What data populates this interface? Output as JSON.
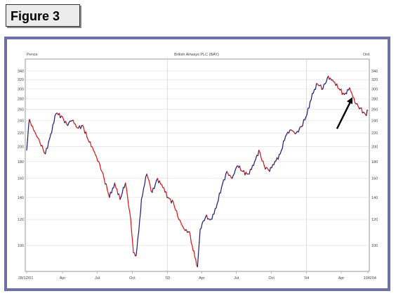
{
  "figure_label": "Figure 3",
  "chart_data": {
    "type": "line",
    "title": "British Airways PLC (BAY)",
    "y_left_label": "Pence",
    "y_right_label": "Ord",
    "y_scale": "log",
    "ylim": [
      85,
      350
    ],
    "y_ticks": [
      100,
      120,
      140,
      160,
      180,
      200,
      220,
      240,
      260,
      280,
      300,
      320,
      340
    ],
    "x_tick_labels": [
      "28/12/01",
      "Apr",
      "Jul",
      "Oct",
      "'03",
      "Apr",
      "Jul",
      "Oct",
      "'04",
      "Apr",
      "10/6/04"
    ],
    "x": [
      "2001-12-28",
      "2002-01-04",
      "2002-01-18",
      "2002-02-01",
      "2002-02-15",
      "2002-03-01",
      "2002-03-15",
      "2002-03-29",
      "2002-04-12",
      "2002-04-26",
      "2002-05-10",
      "2002-05-24",
      "2002-06-07",
      "2002-06-21",
      "2002-07-05",
      "2002-07-19",
      "2002-08-02",
      "2002-08-16",
      "2002-08-30",
      "2002-09-13",
      "2002-09-27",
      "2002-10-04",
      "2002-10-11",
      "2002-10-18",
      "2002-10-25",
      "2002-11-08",
      "2002-11-22",
      "2002-12-06",
      "2002-12-20",
      "2003-01-03",
      "2003-01-17",
      "2003-01-31",
      "2003-02-14",
      "2003-02-28",
      "2003-03-07",
      "2003-03-14",
      "2003-03-21",
      "2003-03-28",
      "2003-04-11",
      "2003-04-25",
      "2003-05-09",
      "2003-05-23",
      "2003-06-06",
      "2003-06-20",
      "2003-07-04",
      "2003-07-18",
      "2003-08-01",
      "2003-08-15",
      "2003-08-29",
      "2003-09-12",
      "2003-09-26",
      "2003-10-10",
      "2003-10-24",
      "2003-11-07",
      "2003-11-21",
      "2003-12-05",
      "2003-12-19",
      "2004-01-02",
      "2004-01-16",
      "2004-01-30",
      "2004-02-13",
      "2004-02-27",
      "2004-03-12",
      "2004-03-26",
      "2004-04-09",
      "2004-04-23",
      "2004-05-07",
      "2004-05-21",
      "2004-06-04",
      "2004-06-10"
    ],
    "values": [
      195,
      242,
      222,
      205,
      190,
      218,
      252,
      248,
      234,
      240,
      228,
      232,
      210,
      195,
      180,
      160,
      140,
      155,
      138,
      155,
      120,
      95,
      93,
      110,
      138,
      165,
      145,
      160,
      150,
      140,
      135,
      120,
      112,
      110,
      100,
      92,
      86,
      112,
      122,
      120,
      130,
      150,
      168,
      160,
      175,
      168,
      165,
      175,
      195,
      175,
      168,
      180,
      190,
      215,
      225,
      220,
      230,
      250,
      290,
      310,
      300,
      328,
      315,
      300,
      288,
      302,
      272,
      262,
      250,
      258
    ],
    "series_colors": {
      "rising": "#1a1a7a",
      "falling": "#dd1111"
    },
    "grid": "vertical lines at year boundaries, horizontal at major ticks",
    "annotations": [
      {
        "type": "arrow",
        "points_to": "2004-04-23"
      }
    ]
  }
}
